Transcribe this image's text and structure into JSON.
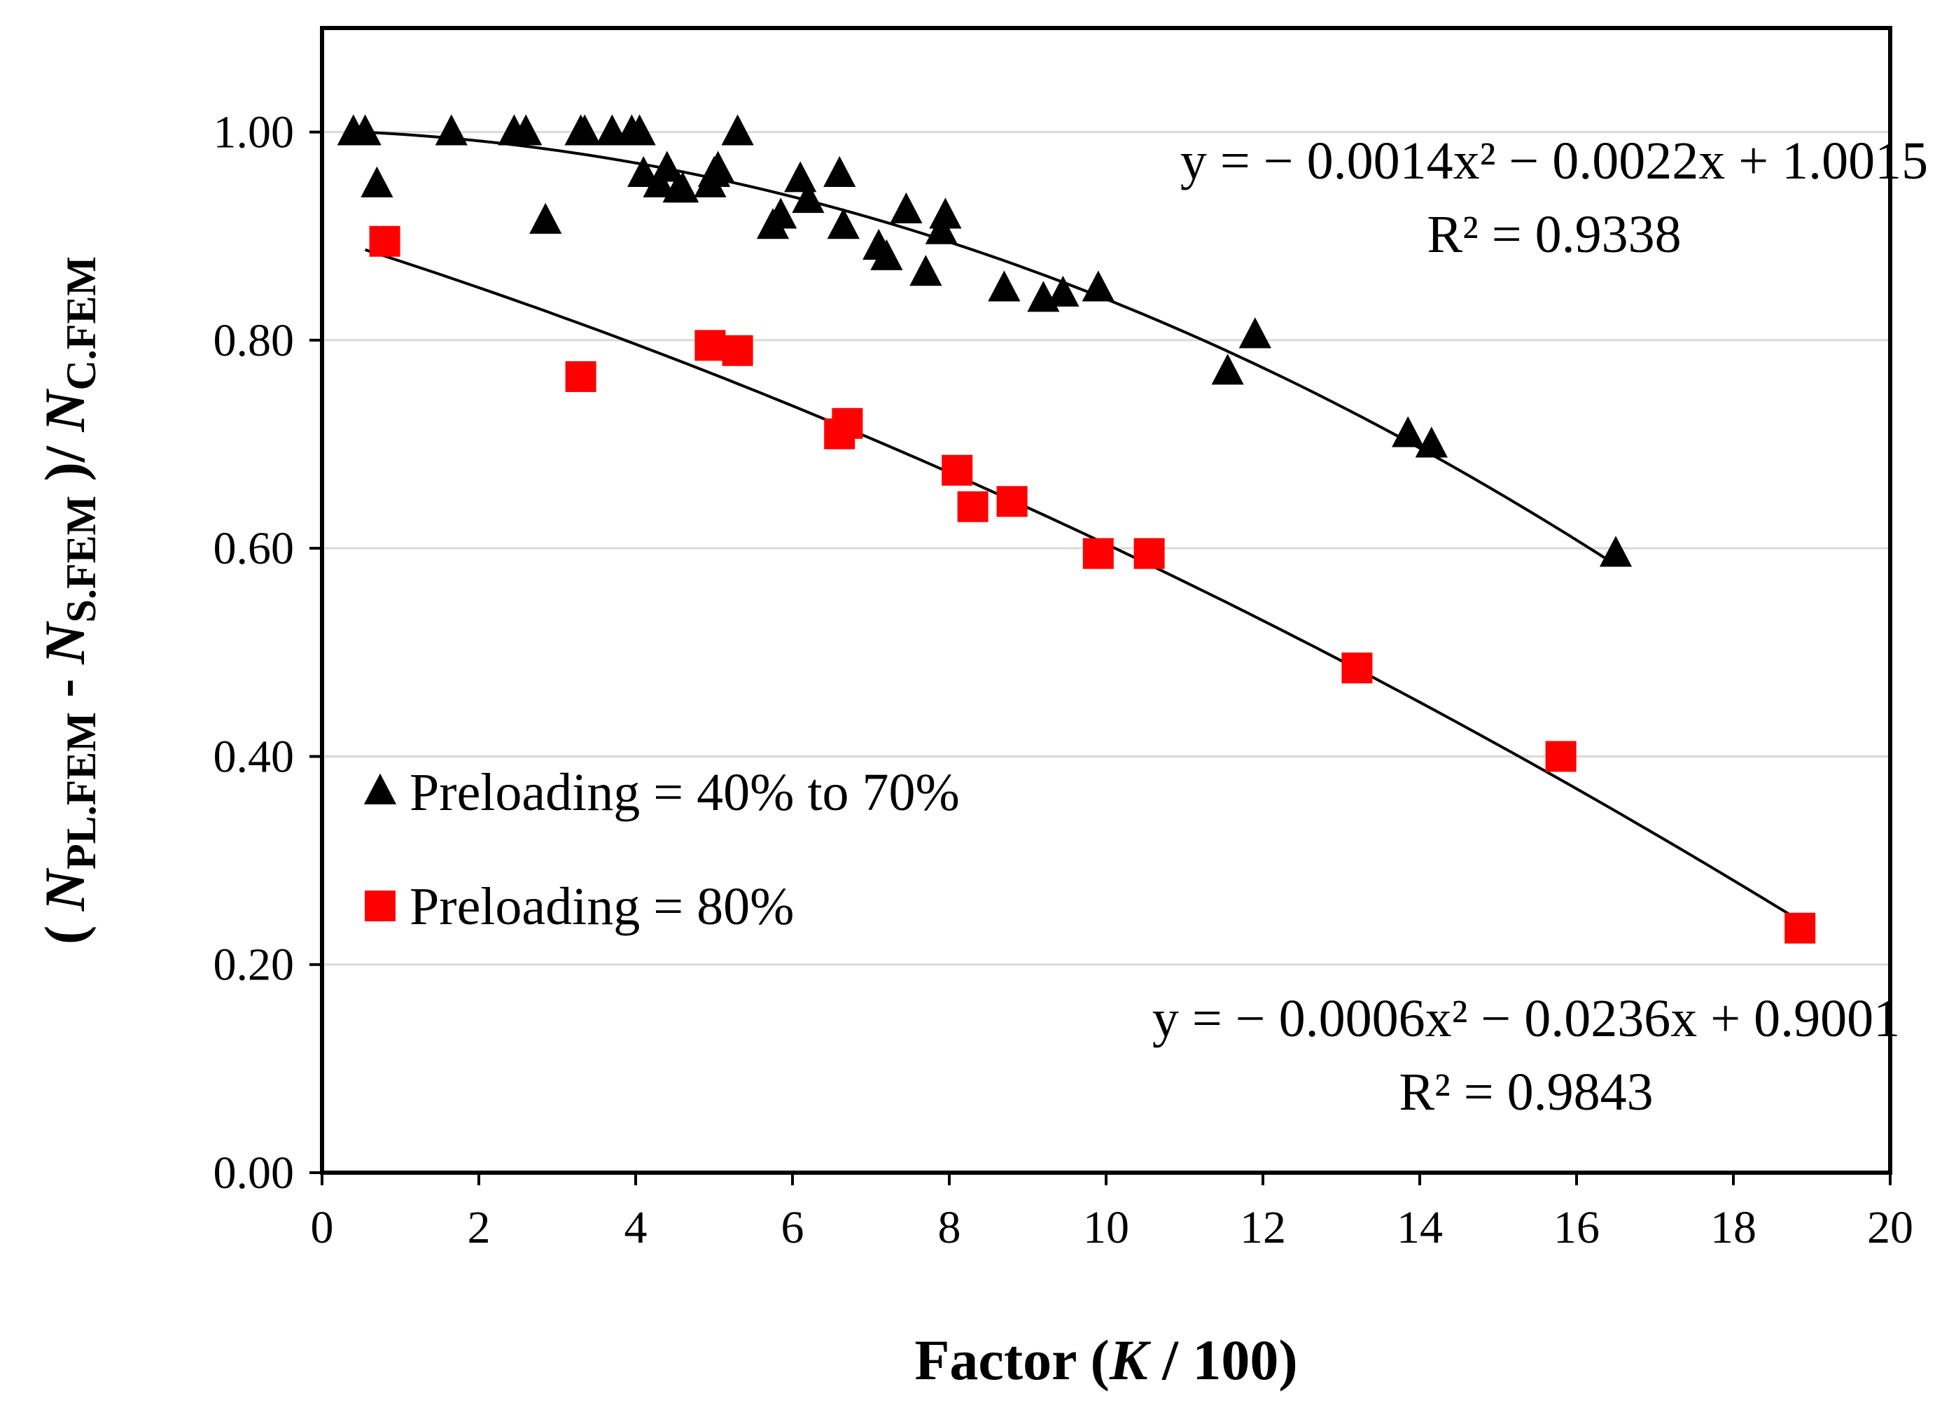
{
  "chart_data": {
    "type": "scatter",
    "title": "",
    "xlabel": "Factor (K / 100)",
    "ylabel": "( N_PL.FEM - N_S.FEM )/ N_C.FEM",
    "xlim": [
      0,
      20
    ],
    "ylim": [
      0,
      1.1
    ],
    "x_ticks": [
      "0",
      "2",
      "4",
      "6",
      "8",
      "10",
      "12",
      "14",
      "16",
      "18",
      "20"
    ],
    "y_ticks": [
      "0.00",
      "0.20",
      "0.40",
      "0.60",
      "0.80",
      "1.00"
    ],
    "grid": "horizontal",
    "legend_position": "left-middle",
    "series": [
      {
        "name": "Preloading = 40% to 70%",
        "marker": "triangle",
        "color": "#000000",
        "points": [
          [
            0.4,
            1.0
          ],
          [
            0.55,
            1.0
          ],
          [
            0.7,
            0.95
          ],
          [
            1.65,
            1.0
          ],
          [
            2.45,
            1.0
          ],
          [
            2.6,
            1.0
          ],
          [
            2.85,
            0.915
          ],
          [
            3.3,
            1.0
          ],
          [
            3.35,
            1.0
          ],
          [
            3.7,
            1.0
          ],
          [
            3.95,
            1.0
          ],
          [
            4.05,
            1.0
          ],
          [
            4.1,
            0.96
          ],
          [
            4.3,
            0.95
          ],
          [
            4.4,
            0.965
          ],
          [
            4.55,
            0.945
          ],
          [
            4.6,
            0.945
          ],
          [
            4.95,
            0.95
          ],
          [
            5.0,
            0.96
          ],
          [
            5.05,
            0.965
          ],
          [
            5.3,
            1.0
          ],
          [
            5.75,
            0.91
          ],
          [
            5.85,
            0.92
          ],
          [
            6.1,
            0.955
          ],
          [
            6.2,
            0.935
          ],
          [
            6.6,
            0.96
          ],
          [
            6.65,
            0.91
          ],
          [
            7.1,
            0.89
          ],
          [
            7.2,
            0.88
          ],
          [
            7.45,
            0.925
          ],
          [
            7.7,
            0.865
          ],
          [
            7.9,
            0.905
          ],
          [
            7.95,
            0.92
          ],
          [
            8.7,
            0.85
          ],
          [
            9.2,
            0.84
          ],
          [
            9.45,
            0.845
          ],
          [
            9.9,
            0.85
          ],
          [
            11.55,
            0.77
          ],
          [
            11.9,
            0.805
          ],
          [
            13.85,
            0.71
          ],
          [
            14.15,
            0.7
          ],
          [
            16.5,
            0.595
          ]
        ],
        "fit_equation": "y = − 0.0014x² − 0.0022x + 1.0015",
        "fit_r2": "R² = 0.9338",
        "fit_coefficients": [
          -0.0014,
          -0.0022,
          1.0015
        ],
        "fit_range": [
          0.4,
          16.5
        ]
      },
      {
        "name": "Preloading = 80%",
        "marker": "square",
        "color": "#ff0000",
        "points": [
          [
            0.8,
            0.895
          ],
          [
            3.3,
            0.765
          ],
          [
            4.95,
            0.795
          ],
          [
            5.3,
            0.79
          ],
          [
            6.6,
            0.71
          ],
          [
            6.7,
            0.72
          ],
          [
            8.1,
            0.675
          ],
          [
            8.3,
            0.64
          ],
          [
            8.8,
            0.645
          ],
          [
            9.9,
            0.595
          ],
          [
            10.55,
            0.595
          ],
          [
            13.2,
            0.485
          ],
          [
            15.8,
            0.4
          ],
          [
            18.85,
            0.235
          ]
        ],
        "fit_equation": "y = − 0.0006x² − 0.0236x + 0.9001",
        "fit_r2": "R² = 0.9843",
        "fit_coefficients": [
          -0.0006,
          -0.0236,
          0.9001
        ],
        "fit_range": [
          0.55,
          18.85
        ]
      }
    ],
    "ylabel_parts": {
      "open": "( ",
      "n1": "N",
      "sub1": "PL.FEM",
      "minus": " - ",
      "n2": "N",
      "sub2": "S.FEM",
      "close": " )/ ",
      "n3": "N",
      "sub3": "C.FEM"
    },
    "xlabel_parts": {
      "prefix": "Factor (",
      "k": "K",
      "suffix": " / 100)"
    }
  }
}
